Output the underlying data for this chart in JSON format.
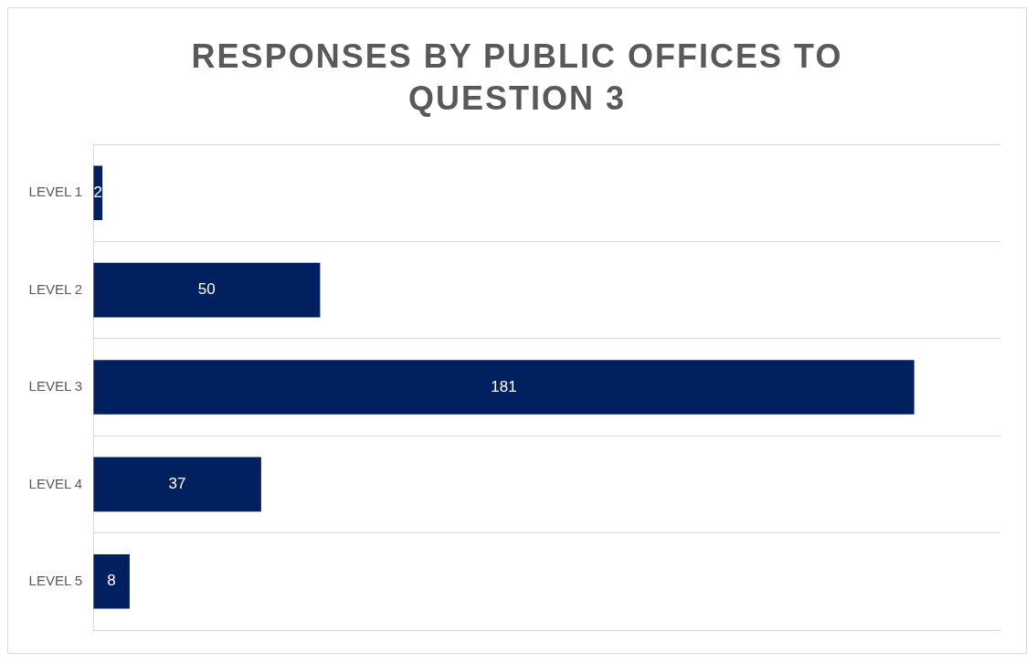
{
  "chart_data": {
    "type": "bar",
    "orientation": "horizontal",
    "title": "RESPONSES BY PUBLIC OFFICES TO QUESTION 3",
    "categories": [
      "LEVEL 1",
      "LEVEL 2",
      "LEVEL 3",
      "LEVEL 4",
      "LEVEL 5"
    ],
    "values": [
      2,
      50,
      181,
      37,
      8
    ],
    "color": "#002060",
    "xlim": [
      0,
      200
    ],
    "tick_labels": "y",
    "grid": "y",
    "data_labels": true,
    "legend": false
  }
}
